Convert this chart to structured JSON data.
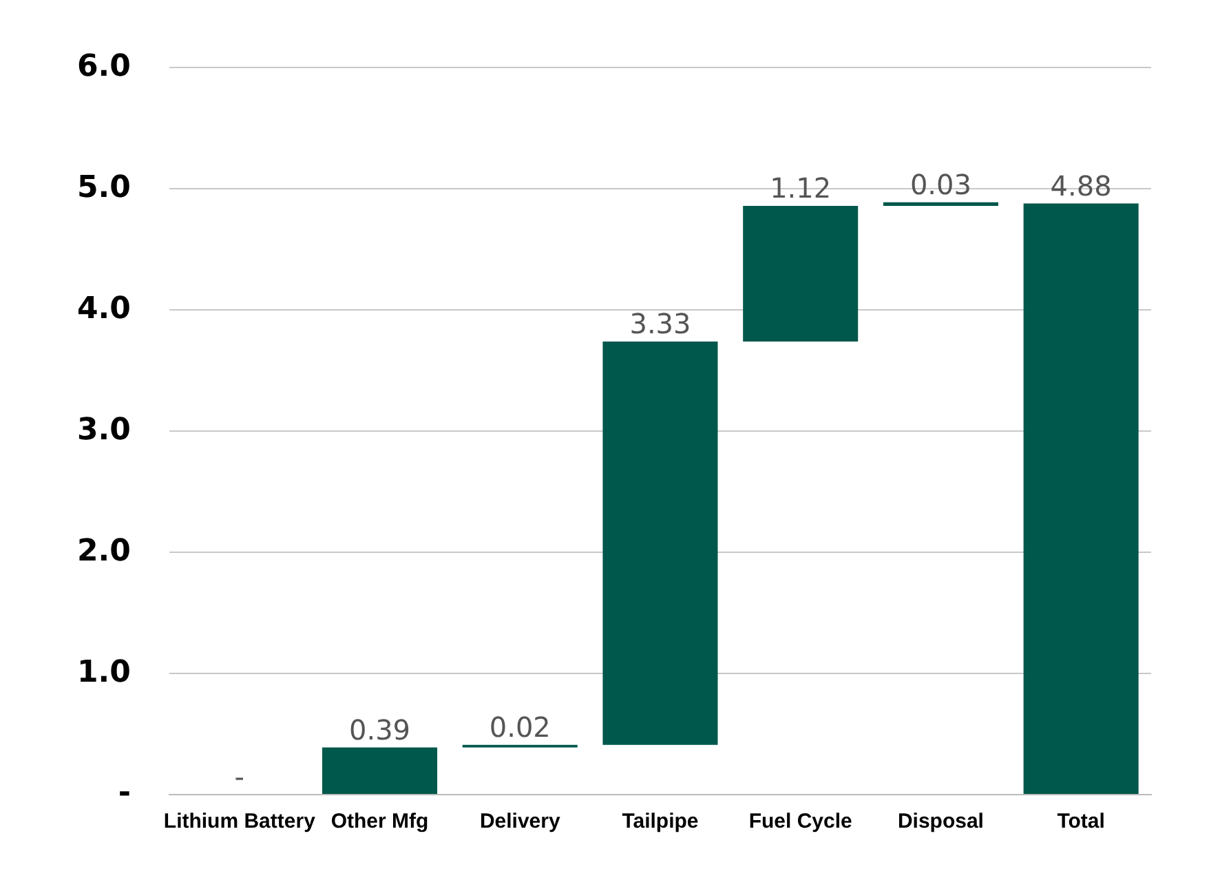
{
  "chart_data": {
    "type": "bar",
    "categories": [
      "Lithium Battery",
      "Other Mfg",
      "Delivery",
      "Tailpipe",
      "Fuel Cycle",
      "Disposal",
      "Total"
    ],
    "values": [
      0,
      0.39,
      0.02,
      3.33,
      1.12,
      0.03,
      4.88
    ],
    "base": [
      null,
      0,
      0.39,
      0.41,
      3.74,
      4.86,
      0
    ],
    "value_labels": [
      "-",
      "0.39",
      "0.02",
      "3.33",
      "1.12",
      "0.03",
      "4.88"
    ],
    "color": "#00574b",
    "ylim": [
      0,
      6
    ],
    "yticks": [
      {
        "value": 0,
        "label": "-"
      },
      {
        "value": 1,
        "label": "1.0"
      },
      {
        "value": 2,
        "label": "2.0"
      },
      {
        "value": 3,
        "label": "3.0"
      },
      {
        "value": 4,
        "label": "4.0"
      },
      {
        "value": 5,
        "label": "5.0"
      },
      {
        "value": 6,
        "label": "6.0"
      }
    ],
    "grid": "y"
  }
}
